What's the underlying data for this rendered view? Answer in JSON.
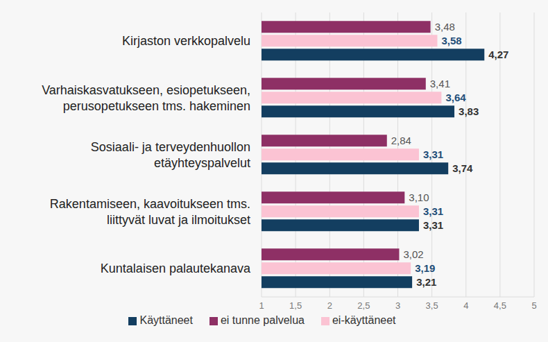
{
  "chart_data": {
    "type": "bar",
    "orientation": "horizontal",
    "categories": [
      "Kirjaston verkkopalvelu",
      "Varhaiskasvatukseen, esiopetukseen, perusopetukseen tms. hakeminen",
      "Sosiaali- ja terveydenhuollon etäyhteyspalvelut",
      "Rakentamiseen, kaavoitukseen tms. liittyvät luvat ja ilmoitukset",
      "Kuntalaisen palautekanava"
    ],
    "series": [
      {
        "name": "ei tunne palvelua",
        "color": "#8e3065",
        "values": [
          3.48,
          3.41,
          2.84,
          3.1,
          3.02
        ],
        "value_labels": [
          "3,48",
          "3,41",
          "2,84",
          "3,10",
          "3,02"
        ]
      },
      {
        "name": "ei-käyttäneet",
        "color": "#fbc3d3",
        "values": [
          3.58,
          3.64,
          3.31,
          3.31,
          3.19
        ],
        "value_labels": [
          "3,58",
          "3,64",
          "3,31",
          "3,31",
          "3,19"
        ]
      },
      {
        "name": "Käyttäneet",
        "color": "#133e60",
        "values": [
          4.27,
          3.83,
          3.74,
          3.31,
          3.21
        ],
        "value_labels": [
          "4,27",
          "3,83",
          "3,74",
          "3,31",
          "3,21"
        ]
      }
    ],
    "xlim": [
      1,
      5
    ],
    "xticks": [
      1,
      {
        "value": 1.5,
        "label": "1,5"
      },
      2,
      {
        "value": 2.5,
        "label": "2,5"
      },
      3,
      {
        "value": 3.5,
        "label": "3,5"
      },
      4,
      {
        "value": 4.5,
        "label": "4,5"
      },
      5
    ],
    "grid": true,
    "legend": "bottom",
    "data_labels": true
  }
}
